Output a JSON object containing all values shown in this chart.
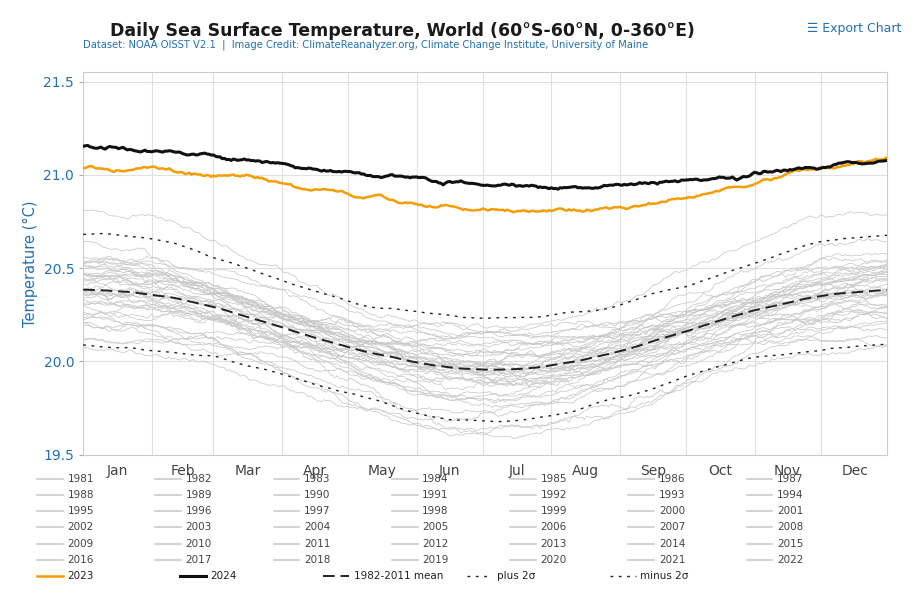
{
  "title": "Daily Sea Surface Temperature, World (60°S-60°N, 0-360°E)",
  "subtitle": "Dataset: NOAA OISST V2.1  |  Image Credit: ClimateReanalyzer.org, Climate Change Institute, University of Maine",
  "export_text": "☰ Export Chart",
  "ylabel": "Temperature (°C)",
  "ylim": [
    19.5,
    21.55
  ],
  "yticks": [
    19.5,
    20.0,
    20.5,
    21.0,
    21.5
  ],
  "months": [
    "Jan",
    "Feb",
    "Mar",
    "Apr",
    "May",
    "Jun",
    "Jul",
    "Aug",
    "Sep",
    "Oct",
    "Nov",
    "Dec"
  ],
  "title_color": "#1a1a1a",
  "subtitle_color": "#2271b3",
  "export_color": "#2271b3",
  "ylabel_color": "#2271b3",
  "ytick_color": "#2271b3",
  "xtick_color": "#444444",
  "gray_line_color": "#c8c8c8",
  "orange_color": "#f59d00",
  "black_color": "#111111",
  "dashed_color": "#222222",
  "background_color": "#ffffff",
  "grid_color": "#e0e0e0",
  "years_gray": [
    1981,
    1982,
    1983,
    1984,
    1985,
    1986,
    1987,
    1988,
    1989,
    1990,
    1991,
    1992,
    1993,
    1994,
    1995,
    1996,
    1997,
    1998,
    1999,
    2000,
    2001,
    2002,
    2003,
    2004,
    2005,
    2006,
    2007,
    2008,
    2009,
    2010,
    2011,
    2012,
    2013,
    2014,
    2015,
    2016,
    2017,
    2018,
    2019,
    2020,
    2021,
    2022
  ]
}
